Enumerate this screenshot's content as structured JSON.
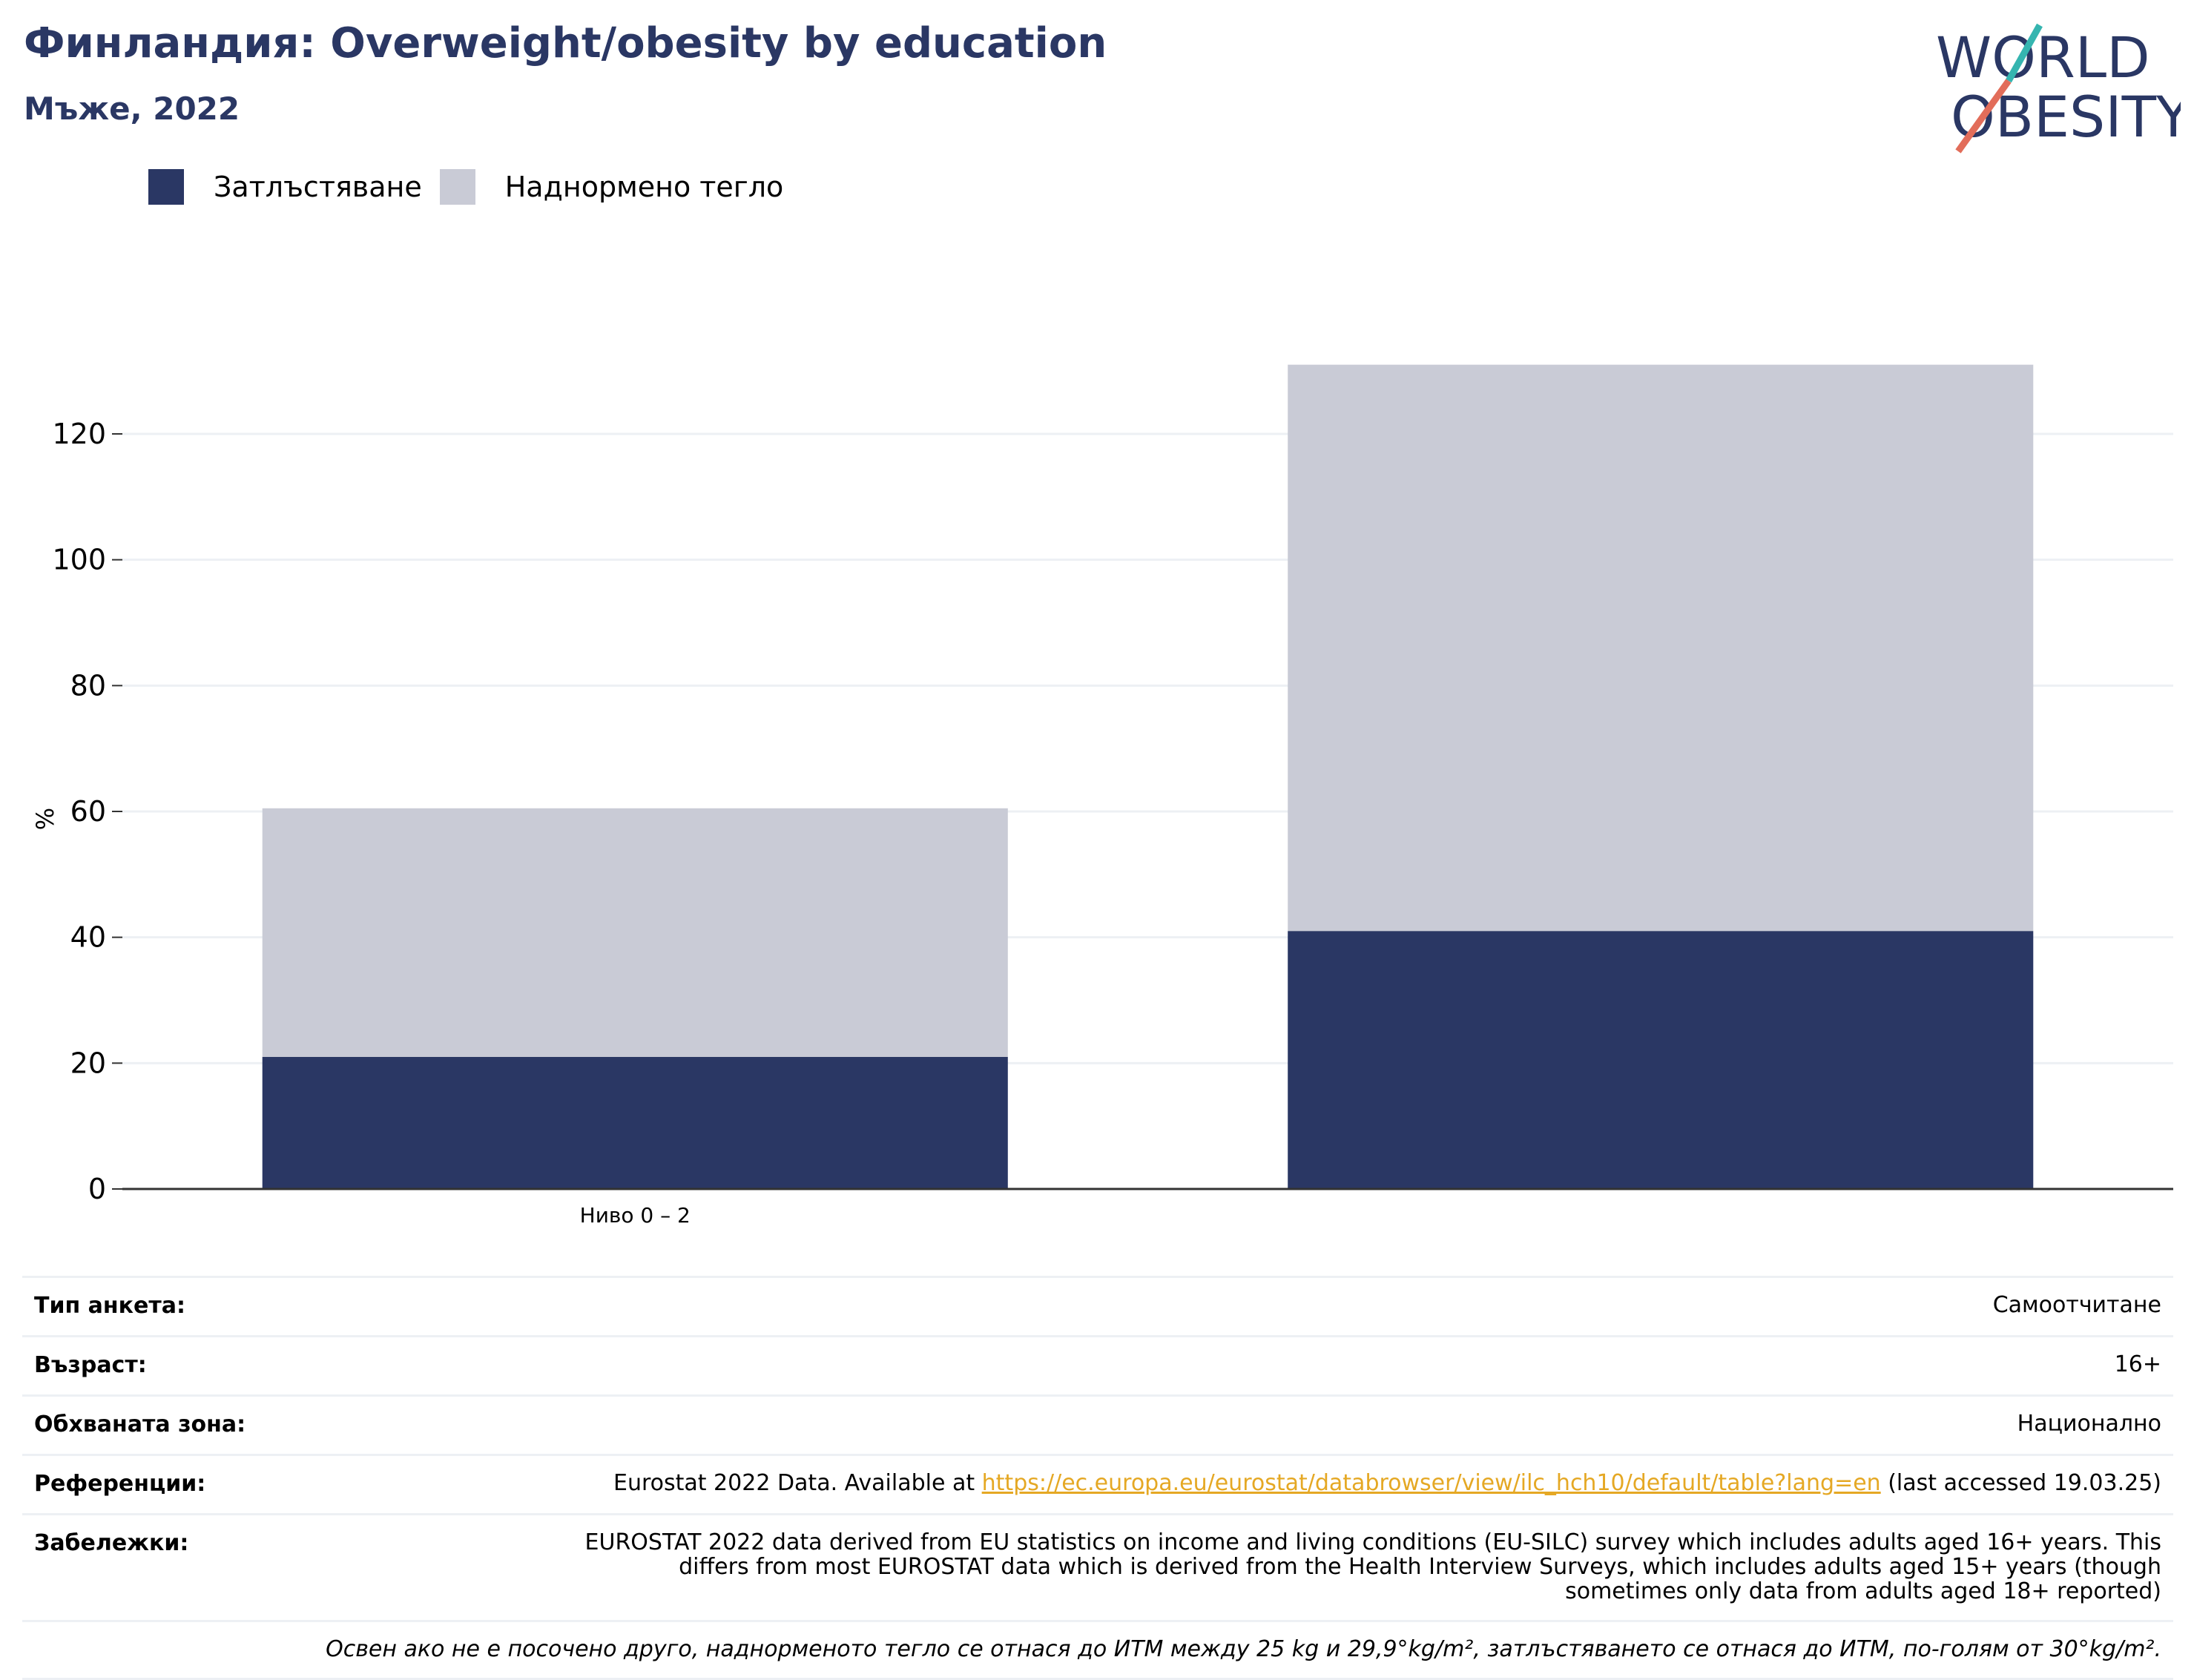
{
  "header": {
    "title": "Финландия: Overweight/obesity by education",
    "subtitle": "Мъже, 2022"
  },
  "logo": {
    "line1": "WORLD",
    "line2": "OBESITY"
  },
  "colors": {
    "obesity": "#2a3764",
    "overweight": "#c9cbd6",
    "title": "#2a3764",
    "link": "#e5a824"
  },
  "chart_data": {
    "type": "bar",
    "stacked": true,
    "categories": [
      "Ниво 0 – 2",
      ""
    ],
    "series": [
      {
        "name": "Затлъстяване",
        "values": [
          21,
          41
        ]
      },
      {
        "name": "Наднормено тегло",
        "values": [
          39.5,
          90
        ]
      }
    ],
    "ylabel": "%",
    "ylim": [
      0,
      130
    ],
    "yticks": [
      0,
      20,
      40,
      60,
      80,
      100,
      120
    ],
    "grid": true,
    "legend_position": "top-left"
  },
  "info": {
    "survey_label": "Тип анкета:",
    "survey_value": "Самоотчитане",
    "age_label": "Възраст:",
    "age_value": "16+",
    "coverage_label": "Обхваната зона:",
    "coverage_value": "Национално",
    "refs_label": "Референции:",
    "refs_prefix": "Eurostat 2022 Data. Available at ",
    "refs_link": "https://ec.europa.eu/eurostat/databrowser/view/ilc_hch10/default/table?lang=en",
    "refs_suffix": " (last accessed 19.03.25)",
    "notes_label": "Забележки:",
    "notes_value": "EUROSTAT 2022 data derived from EU statistics on income and living conditions (EU-SILC) survey which includes adults aged 16+ years. This differs from most EUROSTAT data which is derived from the Health Interview Surveys, which includes adults aged 15+ years (though sometimes only data from adults aged 18+ reported)",
    "footnote": "Освен ако не е посочено друго, наднорменото тегло се отнася до ИТМ между 25 kg и 29,9°kg/m², затлъстяването се отнася до ИТМ, по-голям от 30°kg/m²."
  }
}
